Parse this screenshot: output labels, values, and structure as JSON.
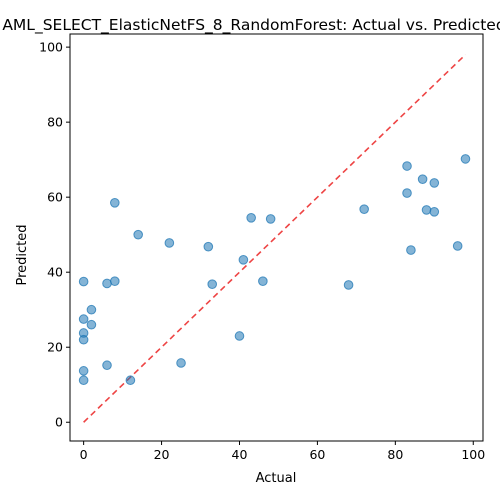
{
  "chart_data": {
    "type": "scatter",
    "title": "AML_SELECT_ElasticNetFS_8_RandomForest: Actual vs. Predicted",
    "xlabel": "Actual",
    "ylabel": "Predicted",
    "xlim": [
      -3.5,
      102.5
    ],
    "ylim": [
      -5,
      103.5
    ],
    "xticks": [
      0,
      20,
      40,
      60,
      80,
      100
    ],
    "yticks": [
      0,
      20,
      40,
      60,
      80,
      100
    ],
    "grid": false,
    "legend": "none",
    "point_color": "#1f77b4",
    "reference_line": {
      "x": [
        0,
        98
      ],
      "y": [
        0,
        98
      ],
      "color": "#ee4444",
      "style": "dashed"
    },
    "points": [
      {
        "x": 0,
        "y": 37.5
      },
      {
        "x": 0,
        "y": 27.5
      },
      {
        "x": 0,
        "y": 23.8
      },
      {
        "x": 0,
        "y": 22
      },
      {
        "x": 0,
        "y": 13.7
      },
      {
        "x": 0,
        "y": 11.2
      },
      {
        "x": 2,
        "y": 30
      },
      {
        "x": 2,
        "y": 26
      },
      {
        "x": 6,
        "y": 37
      },
      {
        "x": 6,
        "y": 15.2
      },
      {
        "x": 8,
        "y": 58.5
      },
      {
        "x": 8,
        "y": 37.6
      },
      {
        "x": 12,
        "y": 11.2
      },
      {
        "x": 14,
        "y": 50
      },
      {
        "x": 22,
        "y": 47.8
      },
      {
        "x": 25,
        "y": 15.8
      },
      {
        "x": 32,
        "y": 46.8
      },
      {
        "x": 33,
        "y": 36.8
      },
      {
        "x": 40,
        "y": 23
      },
      {
        "x": 41,
        "y": 43.3
      },
      {
        "x": 43,
        "y": 54.5
      },
      {
        "x": 46,
        "y": 37.6
      },
      {
        "x": 48,
        "y": 54.2
      },
      {
        "x": 68,
        "y": 36.6
      },
      {
        "x": 72,
        "y": 56.8
      },
      {
        "x": 83,
        "y": 68.3
      },
      {
        "x": 83,
        "y": 61.1
      },
      {
        "x": 84,
        "y": 45.9
      },
      {
        "x": 87,
        "y": 64.8
      },
      {
        "x": 88,
        "y": 56.6
      },
      {
        "x": 90,
        "y": 63.8
      },
      {
        "x": 90,
        "y": 56.1
      },
      {
        "x": 96,
        "y": 47
      },
      {
        "x": 98,
        "y": 70.2
      }
    ]
  }
}
